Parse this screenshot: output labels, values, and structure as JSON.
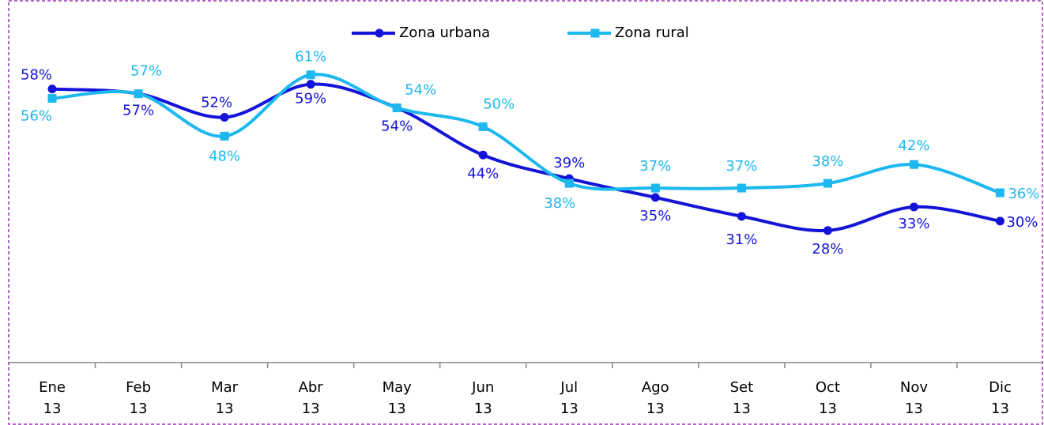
{
  "chart_data": {
    "type": "line",
    "categories": [
      "Ene 13",
      "Feb 13",
      "Mar 13",
      "Abr 13",
      "May 13",
      "Jun 13",
      "Jul 13",
      "Ago 13",
      "Set 13",
      "Oct 13",
      "Nov 13",
      "Dic 13"
    ],
    "series": [
      {
        "name": "Zona urbana",
        "color": "#1414d8",
        "values": [
          58,
          57,
          52,
          59,
          54,
          44,
          39,
          35,
          31,
          28,
          33,
          30
        ],
        "value_labels": [
          "58%",
          "57%",
          "52%",
          "59%",
          "54%",
          "44%",
          "39%",
          "35%",
          "31%",
          "28%",
          "33%",
          "30%"
        ]
      },
      {
        "name": "Zona rural",
        "color": "#1cb8ee",
        "values": [
          56,
          57,
          48,
          61,
          54,
          50,
          38,
          37,
          37,
          38,
          42,
          36
        ],
        "value_labels": [
          "56%",
          "57%",
          "48%",
          "61%",
          "54%",
          "50%",
          "38%",
          "37%",
          "37%",
          "38%",
          "42%",
          "36%"
        ]
      }
    ],
    "ylim": [
      0,
      70
    ],
    "legend": "top"
  }
}
